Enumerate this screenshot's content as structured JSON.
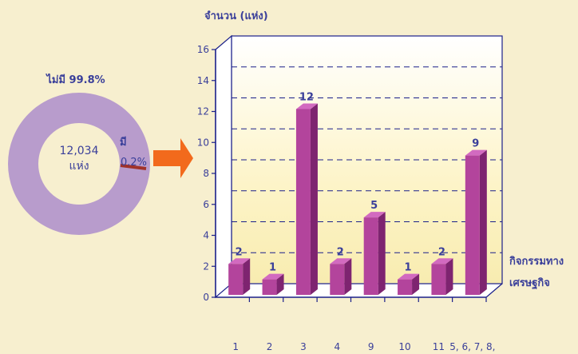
{
  "colors": {
    "background": "#f7efcf",
    "donut_main": "#b89ccc",
    "donut_slice": "#a0322a",
    "arrow": "#f26a1c",
    "bar_front": "#b3449c",
    "bar_side": "#7e2470",
    "bar_top": "#d26ac0",
    "axis": "#1a1f8a",
    "label_text": "#3a3f9a"
  },
  "donut": {
    "center_value": "12,034",
    "center_unit": "แห่ง",
    "none_label": "ไม่มี 99.8%",
    "have_label": "มี",
    "have_pct": "0.2%",
    "slices": [
      {
        "label": "ไม่มี",
        "percent": 99.8
      },
      {
        "label": "มี",
        "percent": 0.2
      }
    ]
  },
  "chart_data": {
    "type": "bar",
    "ylabel": "จำนวน (แห่ง)",
    "xlabel_line1": "กิจกรรมทาง",
    "xlabel_line2": "เศรษฐกิจ",
    "categories": [
      "1",
      "2",
      "3",
      "4",
      "9",
      "10",
      "11",
      "5, 6, 7, 8,"
    ],
    "values": [
      2,
      1,
      12,
      2,
      5,
      1,
      2,
      9
    ],
    "ylim": [
      0,
      16
    ],
    "yticks": [
      0,
      2,
      4,
      6,
      8,
      10,
      12,
      14,
      16
    ],
    "grid": true
  }
}
